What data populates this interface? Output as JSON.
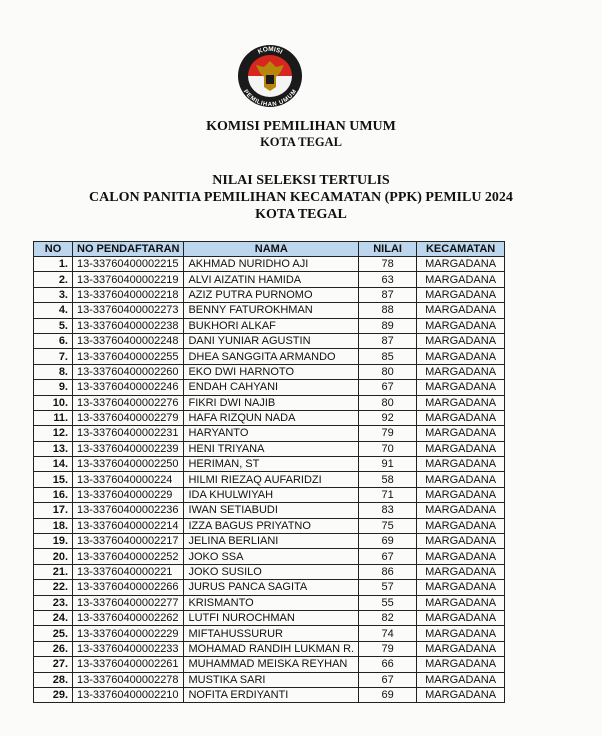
{
  "logo": {
    "top_text": "KOMISI",
    "bottom_text": "PEMILIHAN UMUM",
    "colors": {
      "red": "#d7261e",
      "black": "#1a1a1a",
      "gold": "#b8860b"
    }
  },
  "header": {
    "org": "KOMISI PEMILIHAN UMUM",
    "city": "KOTA TEGAL",
    "title1": "NILAI SELEKSI TERTULIS",
    "title2": "CALON PANITIA PEMILIHAN KECAMATAN (PPK) PEMILU 2024",
    "title3": "KOTA TEGAL"
  },
  "table": {
    "header_color": "#bcd6ee",
    "columns": [
      "NO",
      "NO PENDAFTARAN",
      "NAMA",
      "NILAI",
      "KECAMATAN"
    ],
    "rows": [
      [
        "1.",
        "13-33760400002215",
        "AKHMAD NURIDHO AJI",
        "78",
        "MARGADANA"
      ],
      [
        "2.",
        "13-33760400002219",
        "ALVI AIZATIN HAMIDA",
        "63",
        "MARGADANA"
      ],
      [
        "3.",
        "13-33760400002218",
        "AZIZ PUTRA PURNOMO",
        "87",
        "MARGADANA"
      ],
      [
        "4.",
        "13-33760400002273",
        "BENNY FATUROKHMAN",
        "88",
        "MARGADANA"
      ],
      [
        "5.",
        "13-33760400002238",
        "BUKHORI ALKAF",
        "89",
        "MARGADANA"
      ],
      [
        "6.",
        "13-33760400002248",
        "DANI YUNIAR AGUSTIN",
        "87",
        "MARGADANA"
      ],
      [
        "7.",
        "13-33760400002255",
        "DHEA SANGGITA ARMANDO",
        "85",
        "MARGADANA"
      ],
      [
        "8.",
        "13-33760400002260",
        "EKO DWI HARNOTO",
        "80",
        "MARGADANA"
      ],
      [
        "9.",
        "13-33760400002246",
        "ENDAH CAHYANI",
        "67",
        "MARGADANA"
      ],
      [
        "10.",
        "13-33760400002276",
        "FIKRI DWI NAJIB",
        "80",
        "MARGADANA"
      ],
      [
        "11.",
        "13-33760400002279",
        "HAFA RIZQUN NADA",
        "92",
        "MARGADANA"
      ],
      [
        "12.",
        "13-33760400002231",
        "HARYANTO",
        "79",
        "MARGADANA"
      ],
      [
        "13.",
        "13-33760400002239",
        "HENI TRIYANA",
        "70",
        "MARGADANA"
      ],
      [
        "14.",
        "13-33760400002250",
        "HERIMAN, ST",
        "91",
        "MARGADANA"
      ],
      [
        "15.",
        "13-3376040000224",
        "HILMI RIEZAQ AUFARIDZI",
        "58",
        "MARGADANA"
      ],
      [
        "16.",
        "13-3376040000229",
        "IDA KHULWIYAH",
        "71",
        "MARGADANA"
      ],
      [
        "17.",
        "13-33760400002236",
        "IWAN SETIABUDI",
        "83",
        "MARGADANA"
      ],
      [
        "18.",
        "13-33760400002214",
        "IZZA BAGUS PRIYATNO",
        "75",
        "MARGADANA"
      ],
      [
        "19.",
        "13-33760400002217",
        "JELINA BERLIANI",
        "69",
        "MARGADANA"
      ],
      [
        "20.",
        "13-33760400002252",
        "JOKO SSA",
        "67",
        "MARGADANA"
      ],
      [
        "21.",
        "13-3376040000221",
        "JOKO SUSILO",
        "86",
        "MARGADANA"
      ],
      [
        "22.",
        "13-33760400002266",
        "JURUS PANCA SAGITA",
        "57",
        "MARGADANA"
      ],
      [
        "23.",
        "13-33760400002277",
        "KRISMANTO",
        "55",
        "MARGADANA"
      ],
      [
        "24.",
        "13-33760400002262",
        "LUTFI NUROCHMAN",
        "82",
        "MARGADANA"
      ],
      [
        "25.",
        "13-33760400002229",
        "MIFTAHUSSURUR",
        "74",
        "MARGADANA"
      ],
      [
        "26.",
        "13-33760400002233",
        "MOHAMAD RANDIH LUKMAN R.",
        "79",
        "MARGADANA"
      ],
      [
        "27.",
        "13-33760400002261",
        "MUHAMMAD MEISKA REYHAN",
        "66",
        "MARGADANA"
      ],
      [
        "28.",
        "13-33760400002278",
        "MUSTIKA SARI",
        "67",
        "MARGADANA"
      ],
      [
        "29.",
        "13-33760400002210",
        "NOFITA ERDIYANTI",
        "69",
        "MARGADANA"
      ]
    ]
  }
}
